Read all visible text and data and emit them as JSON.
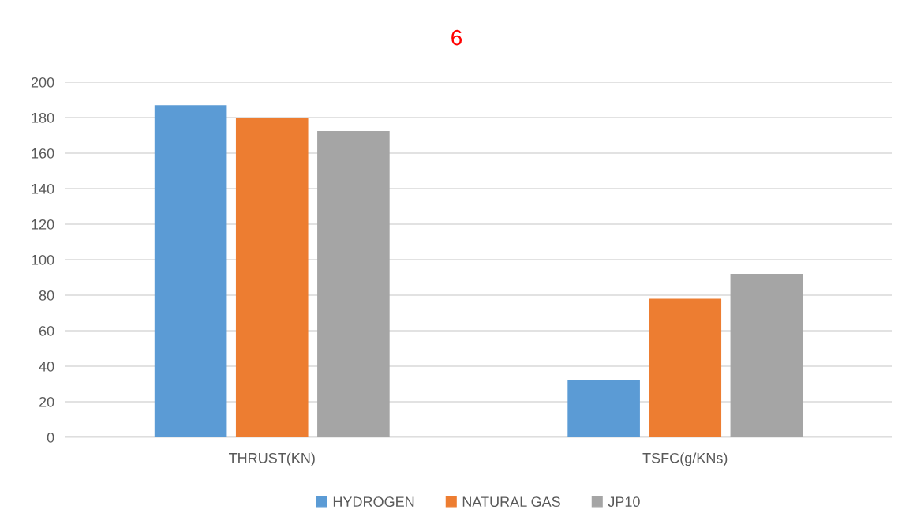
{
  "chart_data": {
    "type": "bar",
    "title": "6",
    "categories": [
      "THRUST(KN)",
      "TSFC(g/KNs)"
    ],
    "series": [
      {
        "name": "HYDROGEN",
        "color": "#5b9bd5",
        "values": [
          187,
          32.5
        ]
      },
      {
        "name": "NATURAL GAS",
        "color": "#ed7d31",
        "values": [
          180,
          78
        ]
      },
      {
        "name": "JP10",
        "color": "#a5a5a5",
        "values": [
          172.5,
          92
        ]
      }
    ],
    "ylim": [
      0,
      200
    ],
    "yticks": [
      0,
      20,
      40,
      60,
      80,
      100,
      120,
      140,
      160,
      180,
      200
    ],
    "grid": "y",
    "legend": "bottom"
  }
}
